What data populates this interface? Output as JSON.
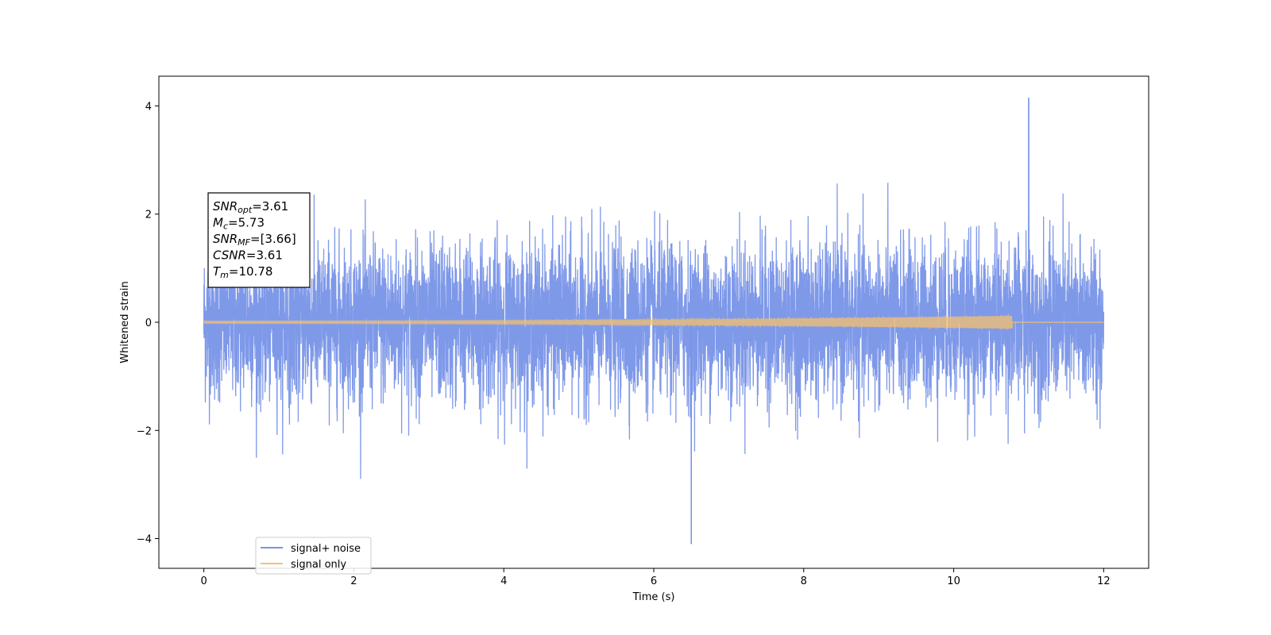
{
  "chart_data": {
    "type": "line",
    "xlabel": "Time (s)",
    "ylabel": "Whitened strain",
    "xlim": [
      -0.6,
      12.6
    ],
    "ylim": [
      -4.55,
      4.55
    ],
    "xticks": [
      0,
      2,
      4,
      6,
      8,
      10,
      12
    ],
    "yticks": [
      -4,
      -2,
      0,
      2,
      4
    ],
    "grid": false,
    "legend_position": "lower-left",
    "series": [
      {
        "name": "signal+ noise",
        "color": "#7893e8",
        "description_of_values": "whitened noise plus signal, sampled densely over 0–12 s",
        "x_range": [
          0,
          12
        ],
        "typical_envelope": [
          -2.3,
          2.4
        ],
        "extremes": {
          "max": 4.15,
          "max_time": 11.0,
          "min": -4.1,
          "min_time": 6.5
        }
      },
      {
        "name": "signal only",
        "color": "#f5c16c",
        "description_of_values": "chirp signal, amplitude slowly growing until merger then ~0",
        "x_range": [
          0,
          12
        ],
        "amplitude_start": 0.02,
        "amplitude_at_merger": 0.12,
        "merger_time": 10.78
      }
    ],
    "annotation": {
      "lines": [
        {
          "symbol": "SNR",
          "sub": "opt",
          "value": "=3.61"
        },
        {
          "symbol": "M",
          "sub": "c",
          "value": "=5.73"
        },
        {
          "symbol": "SNR",
          "sub": "MF",
          "value": "=[3.66]"
        },
        {
          "symbol": "CSNR",
          "sub": "",
          "value": "=3.61"
        },
        {
          "symbol": "T",
          "sub": "m",
          "value": "=10.78"
        }
      ]
    }
  }
}
